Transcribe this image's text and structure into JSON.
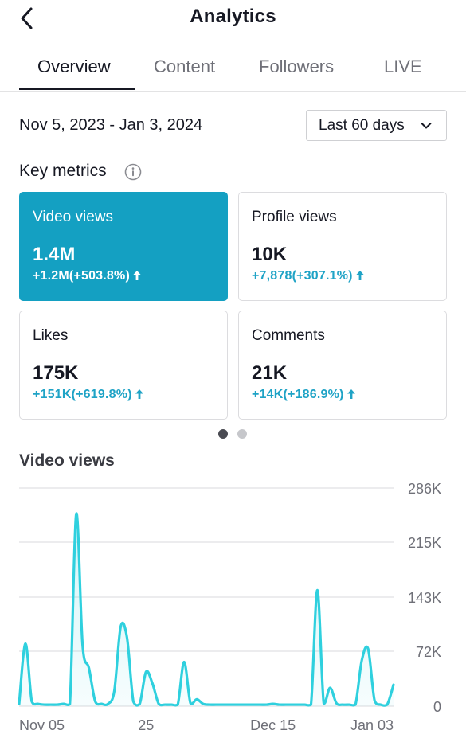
{
  "header": {
    "title": "Analytics",
    "back_icon": "chevron-left-icon"
  },
  "tabs": [
    {
      "label": "Overview",
      "active": true
    },
    {
      "label": "Content",
      "active": false
    },
    {
      "label": "Followers",
      "active": false
    },
    {
      "label": "LIVE",
      "active": false
    }
  ],
  "date_range": "Nov 5, 2023 - Jan 3, 2024",
  "range_select": {
    "value": "Last 60 days",
    "icon": "chevron-down-icon"
  },
  "key_metrics": {
    "title": "Key metrics",
    "info_icon": "info-icon",
    "cards": [
      {
        "label": "Video views",
        "value": "1.4M",
        "change": "+1.2M(+503.8%)",
        "selected": true
      },
      {
        "label": "Profile views",
        "value": "10K",
        "change": "+7,878(+307.1%)",
        "selected": false
      },
      {
        "label": "Likes",
        "value": "175K",
        "change": "+151K(+619.8%)",
        "selected": false
      },
      {
        "label": "Comments",
        "value": "21K",
        "change": "+14K(+186.9%)",
        "selected": false
      }
    ],
    "pager": {
      "pages": 2,
      "current": 1
    }
  },
  "colors": {
    "accent": "#14a0c2",
    "change_text": "#1fa3c6",
    "line": "#2fd0de",
    "grid": "#e6e6e8"
  },
  "chart_data": {
    "type": "line",
    "title": "Video views",
    "x_tick_labels": [
      "Nov 05",
      "25",
      "Dec 15",
      "Jan 03"
    ],
    "y_tick_labels": [
      "286K",
      "215K",
      "143K",
      "72K",
      "0"
    ],
    "ylim": [
      0,
      286000
    ],
    "y_ticks": [
      286000,
      215000,
      143000,
      72000,
      0
    ],
    "x_ticks": [
      0,
      20,
      40,
      59
    ],
    "grid": true,
    "x": [
      0,
      1,
      2,
      3,
      4,
      5,
      6,
      7,
      8,
      9,
      10,
      11,
      12,
      13,
      14,
      15,
      16,
      17,
      18,
      19,
      20,
      21,
      22,
      23,
      24,
      25,
      26,
      27,
      28,
      29,
      30,
      31,
      32,
      33,
      34,
      35,
      36,
      37,
      38,
      39,
      40,
      41,
      42,
      43,
      44,
      45,
      46,
      47,
      48,
      49,
      50,
      51,
      52,
      53,
      54,
      55,
      56,
      57,
      58,
      59
    ],
    "series": [
      {
        "values": [
          3000,
          82000,
          6000,
          3000,
          2000,
          2000,
          2000,
          3000,
          3000,
          252000,
          80000,
          50000,
          6000,
          3000,
          3000,
          20000,
          104000,
          90000,
          6000,
          3000,
          45000,
          30000,
          3000,
          2000,
          2000,
          2000,
          58000,
          4000,
          9000,
          3000,
          2000,
          2000,
          2000,
          2000,
          2000,
          2000,
          2000,
          2000,
          2000,
          2000,
          3000,
          2000,
          2000,
          2000,
          2000,
          2000,
          2000,
          152000,
          4000,
          24000,
          4000,
          2000,
          2000,
          2000,
          60000,
          75000,
          8000,
          2000,
          2000,
          28000
        ]
      }
    ]
  }
}
